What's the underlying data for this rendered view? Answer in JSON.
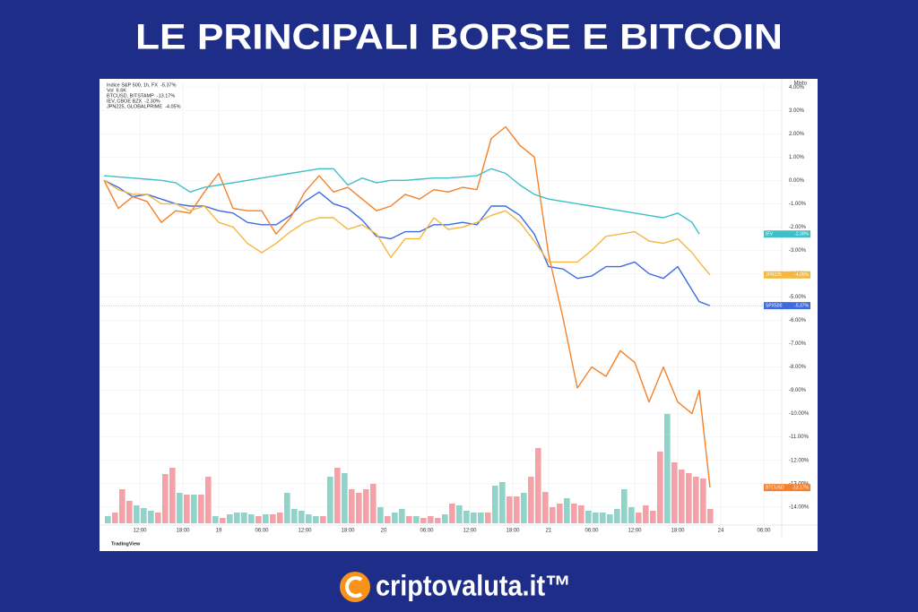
{
  "header": {
    "title": "LE PRINCIPALI BORSE E BITCOIN"
  },
  "chart_data": [
    {
      "type": "line",
      "scale_label": "Misto",
      "watermark": "TradingView",
      "grid": true,
      "x": [
        0,
        2,
        4,
        6,
        8,
        10,
        12,
        14,
        16,
        18,
        20,
        22,
        24,
        26,
        28,
        30,
        32,
        34,
        36,
        38,
        40,
        42,
        44,
        46,
        48,
        50,
        52,
        54,
        56,
        58,
        60,
        62,
        64,
        66,
        68,
        70,
        72,
        74,
        76,
        78,
        80,
        82,
        83,
        84.5
      ],
      "xlim": [
        0,
        94
      ],
      "xticks": [
        {
          "value": 5,
          "label": "12:00"
        },
        {
          "value": 11,
          "label": "18:00"
        },
        {
          "value": 16,
          "label": "19"
        },
        {
          "value": 22,
          "label": "06:00"
        },
        {
          "value": 28,
          "label": "12:00"
        },
        {
          "value": 34,
          "label": "18:00"
        },
        {
          "value": 39,
          "label": "20"
        },
        {
          "value": 45,
          "label": "06:00"
        },
        {
          "value": 51,
          "label": "12:00"
        },
        {
          "value": 57,
          "label": "18:00"
        },
        {
          "value": 62,
          "label": "21"
        },
        {
          "value": 68,
          "label": "06:00"
        },
        {
          "value": 74,
          "label": "12:00"
        },
        {
          "value": 80,
          "label": "18:00"
        },
        {
          "value": 86,
          "label": "24"
        },
        {
          "value": 92,
          "label": "06:00"
        }
      ],
      "ylim": [
        -15.2,
        4.2
      ],
      "yticks": [
        {
          "value": 4,
          "label": "4.00%"
        },
        {
          "value": 3,
          "label": "3.00%"
        },
        {
          "value": 2,
          "label": "2.00%"
        },
        {
          "value": 1,
          "label": "1.00%"
        },
        {
          "value": 0,
          "label": "0.00%"
        },
        {
          "value": -1,
          "label": "-1.00%"
        },
        {
          "value": -2,
          "label": "-2.00%"
        },
        {
          "value": -3,
          "label": "-3.00%"
        },
        {
          "value": -4,
          "label": "-4.00%"
        },
        {
          "value": -5,
          "label": "-5.00%"
        },
        {
          "value": -6,
          "label": "-6.00%"
        },
        {
          "value": -7,
          "label": "-7.00%"
        },
        {
          "value": -8,
          "label": "-8.00%"
        },
        {
          "value": -9,
          "label": "-9.00%"
        },
        {
          "value": -10,
          "label": "-10.00%"
        },
        {
          "value": -11,
          "label": "-11.00%"
        },
        {
          "value": -12,
          "label": "-12.00%"
        },
        {
          "value": -13,
          "label": "-13.00%"
        },
        {
          "value": -14,
          "label": "-14.00%"
        }
      ],
      "series": [
        {
          "name": "Indice S&P 500, 1h, FX",
          "last_label": "-5.37%",
          "tag": "SPX500",
          "color": "#3d6be0",
          "values": [
            0,
            -0.3,
            -0.7,
            -0.6,
            -0.8,
            -1.0,
            -1.1,
            -1.1,
            -1.3,
            -1.4,
            -1.8,
            -1.9,
            -1.9,
            -1.5,
            -0.9,
            -0.5,
            -1.0,
            -1.2,
            -1.7,
            -2.4,
            -2.5,
            -2.2,
            -2.2,
            -1.9,
            -1.9,
            -1.8,
            -1.9,
            -1.1,
            -1.1,
            -1.5,
            -2.3,
            -3.7,
            -3.8,
            -4.2,
            -4.1,
            -3.7,
            -3.7,
            -3.5,
            -4.0,
            -4.2,
            -3.7,
            -4.7,
            -5.2,
            -5.37
          ]
        },
        {
          "name": "BTCUSD, BITSTAMP",
          "last_label": "-13.17%",
          "tag": "BTCUSD",
          "color": "#f5812a",
          "values": [
            0,
            -1.2,
            -0.7,
            -0.9,
            -1.8,
            -1.3,
            -1.4,
            -0.5,
            0.3,
            -1.2,
            -1.3,
            -1.3,
            -2.3,
            -1.6,
            -0.5,
            0.2,
            -0.5,
            -0.3,
            -0.8,
            -1.3,
            -1.1,
            -0.6,
            -0.8,
            -0.4,
            -0.5,
            -0.3,
            -0.4,
            1.8,
            2.3,
            1.5,
            1.0,
            -3.2,
            -5.9,
            -8.9,
            -8.0,
            -8.4,
            -7.3,
            -7.8,
            -9.5,
            -8.0,
            -9.5,
            -10.0,
            -9.0,
            -13.17
          ]
        },
        {
          "name": "IEV, CBOE BZX",
          "last_label": "-2.30%",
          "tag": "IEV",
          "color": "#3fbfc8",
          "values": [
            0.2,
            0.15,
            0.1,
            0.05,
            0,
            -0.1,
            -0.5,
            -0.3,
            -0.2,
            -0.1,
            0,
            0.1,
            0.2,
            0.3,
            0.4,
            0.5,
            0.5,
            -0.2,
            0.1,
            -0.1,
            0,
            0,
            0.05,
            0.1,
            0.1,
            0.15,
            0.2,
            0.5,
            0.3,
            -0.2,
            -0.6,
            -0.8,
            -0.9,
            -1.0,
            -1.1,
            -1.2,
            -1.3,
            -1.4,
            -1.5,
            -1.6,
            -1.4,
            -1.8,
            -2.3,
            null
          ]
        },
        {
          "name": "JPN225, GLOBALPRIME",
          "last_label": "-4.05%",
          "tag": "JPN225",
          "color": "#f4b73f",
          "values": [
            0,
            -0.4,
            -0.6,
            -0.6,
            -1.0,
            -1.0,
            -1.3,
            -1.1,
            -1.8,
            -2.0,
            -2.7,
            -3.1,
            -2.7,
            -2.2,
            -1.8,
            -1.6,
            -1.6,
            -2.1,
            -1.9,
            -2.3,
            -3.3,
            -2.5,
            -2.5,
            -1.6,
            -2.1,
            -2.0,
            -1.8,
            -1.5,
            -1.3,
            -1.8,
            -2.6,
            -3.5,
            -3.5,
            -3.5,
            -3.0,
            -2.4,
            -2.3,
            -2.2,
            -2.6,
            -2.7,
            -2.5,
            -3.1,
            -3.5,
            -4.05
          ]
        }
      ]
    },
    {
      "type": "bar",
      "name": "Vol",
      "last_label": "6.6K",
      "ylim": [
        0,
        130
      ],
      "values": [
        8,
        12,
        38,
        25,
        20,
        17,
        14,
        12,
        55,
        62,
        34,
        32,
        32,
        32,
        52,
        8,
        6,
        10,
        12,
        12,
        10,
        8,
        10,
        10,
        12,
        34,
        16,
        14,
        10,
        8,
        8,
        52,
        62,
        56,
        38,
        34,
        38,
        44,
        18,
        8,
        12,
        16,
        8,
        8,
        6,
        8,
        6,
        10,
        22,
        20,
        14,
        12,
        12,
        12,
        42,
        46,
        30,
        30,
        34,
        52,
        84,
        35,
        18,
        22,
        28,
        22,
        20,
        14,
        12,
        12,
        10,
        16,
        38,
        18,
        12,
        20,
        14,
        80,
        122,
        68,
        60,
        56,
        52,
        50,
        16
      ],
      "colors": [
        "#8fd3c9",
        "#f4a2a7",
        "#f4a2a7",
        "#f4a2a7",
        "#8fd3c9",
        "#8fd3c9",
        "#8fd3c9",
        "#f4a2a7",
        "#f4a2a7",
        "#f4a2a7",
        "#8fd3c9",
        "#f4a2a7",
        "#8fd3c9",
        "#f4a2a7",
        "#f4a2a7",
        "#8fd3c9",
        "#f4a2a7",
        "#8fd3c9",
        "#8fd3c9",
        "#8fd3c9",
        "#8fd3c9",
        "#f4a2a7",
        "#8fd3c9",
        "#f4a2a7",
        "#f4a2a7",
        "#8fd3c9",
        "#8fd3c9",
        "#8fd3c9",
        "#8fd3c9",
        "#8fd3c9",
        "#f4a2a7",
        "#8fd3c9",
        "#f4a2a7",
        "#8fd3c9",
        "#f4a2a7",
        "#f4a2a7",
        "#f4a2a7",
        "#f4a2a7",
        "#8fd3c9",
        "#f4a2a7",
        "#8fd3c9",
        "#8fd3c9",
        "#f4a2a7",
        "#8fd3c9",
        "#f4a2a7",
        "#f4a2a7",
        "#f4a2a7",
        "#8fd3c9",
        "#f4a2a7",
        "#8fd3c9",
        "#8fd3c9",
        "#8fd3c9",
        "#8fd3c9",
        "#f4a2a7",
        "#8fd3c9",
        "#8fd3c9",
        "#f4a2a7",
        "#f4a2a7",
        "#8fd3c9",
        "#f4a2a7",
        "#f4a2a7",
        "#f4a2a7",
        "#f4a2a7",
        "#f4a2a7",
        "#8fd3c9",
        "#f4a2a7",
        "#f4a2a7",
        "#8fd3c9",
        "#8fd3c9",
        "#8fd3c9",
        "#8fd3c9",
        "#8fd3c9",
        "#8fd3c9",
        "#8fd3c9",
        "#f4a2a7",
        "#f4a2a7",
        "#f4a2a7",
        "#f4a2a7",
        "#8fd3c9",
        "#f4a2a7",
        "#f4a2a7",
        "#f4a2a7",
        "#f4a2a7",
        "#f4a2a7",
        "#f4a2a7"
      ]
    }
  ],
  "footer": {
    "brand": "criptovaluta.it™"
  }
}
